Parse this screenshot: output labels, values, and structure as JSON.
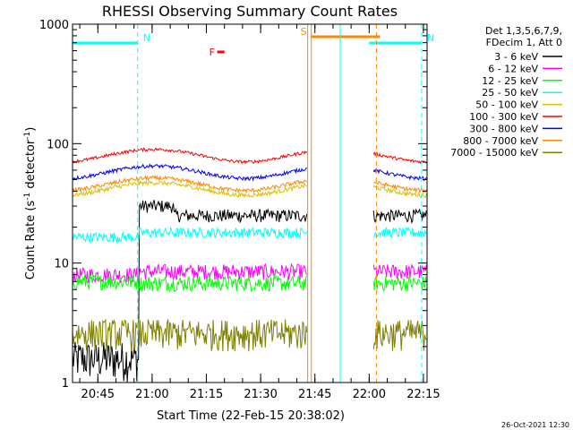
{
  "chart_data": {
    "type": "line",
    "title": "RHESSI Observing Summary Count Rates",
    "xlabel": "Start Time (22-Feb-15 20:38:02)",
    "ylabel_main": "Count Rate (s",
    "ylabel_sup1": "-1",
    "ylabel_mid": " detector",
    "ylabel_sup2": "-1",
    "ylabel_end": ")",
    "y_scale": "log",
    "ylim": [
      1,
      1000
    ],
    "xlim_minutes": [
      20.6333,
      22.2667
    ],
    "x_ticks": [
      {
        "label": "20:45",
        "value": 20.75
      },
      {
        "label": "21:00",
        "value": 21.0
      },
      {
        "label": "21:15",
        "value": 21.25
      },
      {
        "label": "21:30",
        "value": 21.5
      },
      {
        "label": "21:45",
        "value": 21.75
      },
      {
        "label": "22:00",
        "value": 22.0
      },
      {
        "label": "22:15",
        "value": 22.25
      }
    ],
    "y_ticks": [
      {
        "label": "1",
        "value": 1
      },
      {
        "label": "10",
        "value": 10
      },
      {
        "label": "100",
        "value": 100
      },
      {
        "label": "1000",
        "value": 1000
      }
    ],
    "legend_header": [
      "Det 1,3,5,6,7,9,",
      "FDecim 1, Att 0"
    ],
    "series": [
      {
        "name": "3 - 6 keV",
        "color": "#000000"
      },
      {
        "name": "6 - 12 keV",
        "color": "#ff00ff"
      },
      {
        "name": "12 - 25 keV",
        "color": "#00ff00"
      },
      {
        "name": "25 - 50 keV",
        "color": "#00ffff"
      },
      {
        "name": "50 - 100 keV",
        "color": "#d8c000"
      },
      {
        "name": "100 - 300 keV",
        "color": "#ff0000"
      },
      {
        "name": "300 - 800 keV",
        "color": "#0000ff"
      },
      {
        "name": "800 - 7000 keV",
        "color": "#ff8800"
      },
      {
        "name": "7000 - 15000 keV",
        "color": "#808000"
      }
    ],
    "flags": [
      {
        "label": "N",
        "color": "#00ffff",
        "x_start": 20.6333,
        "x_end": 20.9333
      },
      {
        "label": "N",
        "color": "#00ffff",
        "x_start": 22.0,
        "x_end": 22.2417
      },
      {
        "label": "S",
        "color": "#ff8800",
        "x_start": 21.7333,
        "x_end": 22.05
      },
      {
        "label": "F",
        "color": "#ff0000",
        "x_start": 21.3,
        "x_end": 21.3333
      }
    ],
    "data_gaps": [
      21.7167,
      22.0
    ],
    "footer_date": "26-Oct-2021 12:30"
  }
}
